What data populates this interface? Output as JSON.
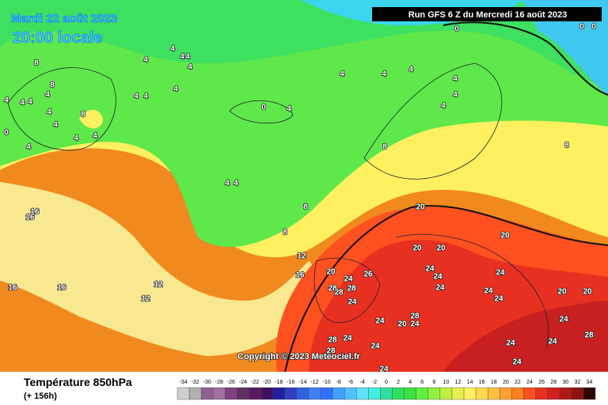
{
  "map": {
    "header": {
      "date": "Mardi 22 août 2023",
      "time": "20:00 locale",
      "run": "Run GFS 6 Z du Mercredi 16 août 2023"
    },
    "copyright": "Copyright © 2023 Meteociel.fr",
    "contour_labels": [
      0,
      0,
      0,
      4,
      4,
      4,
      4,
      4,
      4,
      4,
      4,
      4,
      4,
      0,
      4,
      4,
      4,
      4,
      4,
      4,
      4,
      4,
      4,
      4,
      4,
      4,
      4,
      8,
      8,
      8,
      0,
      4,
      4,
      4,
      8,
      8,
      8,
      8,
      12,
      16,
      12,
      12,
      16,
      16,
      16,
      16,
      20,
      20,
      20,
      20,
      20,
      26,
      24,
      28,
      28,
      28,
      24,
      24,
      24,
      24,
      24,
      24,
      24,
      20,
      20,
      24,
      28,
      28,
      24,
      20,
      24,
      28,
      24,
      24,
      24,
      24,
      24,
      24,
      28
    ],
    "footer": {
      "title": "Température 850hPa",
      "subtitle": "(+ 156h)",
      "scale": {
        "values": [
          -34,
          -32,
          -30,
          -28,
          -26,
          -24,
          -22,
          -20,
          -18,
          -16,
          -14,
          -12,
          -10,
          -8,
          -6,
          -4,
          -2,
          0,
          2,
          4,
          6,
          8,
          10,
          12,
          14,
          16,
          18,
          20,
          22,
          24,
          26,
          28,
          30,
          32,
          34
        ],
        "colors": [
          "#d0d0d0",
          "#b0b0b0",
          "#906090",
          "#a070a0",
          "#804080",
          "#603060",
          "#5a1a60",
          "#401060",
          "#2020a0",
          "#3040c0",
          "#3060e0",
          "#4080f0",
          "#3070ff",
          "#40a0ff",
          "#50c0ff",
          "#60e0ff",
          "#40f0e0",
          "#30e0a0",
          "#30e060",
          "#40e040",
          "#60f040",
          "#90f040",
          "#c0f040",
          "#e8f050",
          "#fff060",
          "#ffd850",
          "#ffc040",
          "#ffa030",
          "#ff8020",
          "#ff5020",
          "#e83020",
          "#d02020",
          "#b01818",
          "#901010",
          "#300404"
        ]
      }
    }
  }
}
